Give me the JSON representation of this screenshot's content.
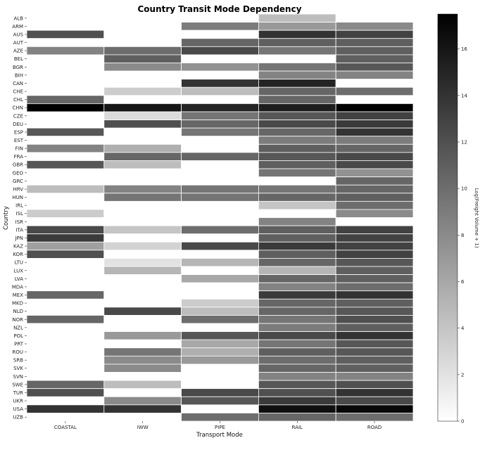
{
  "chart_data": {
    "type": "heatmap",
    "title": "Country Transit Mode Dependency",
    "xlabel": "Transport Mode",
    "ylabel": "Country",
    "colorbar_label": "Log(Freight Volume + 1)",
    "colorbar_range": [
      0,
      17.5
    ],
    "colorbar_ticks": [
      "0",
      "2",
      "4",
      "6",
      "8",
      "10",
      "12",
      "14",
      "16"
    ],
    "colormap": "Greys",
    "grid": false,
    "legend": "colorbar-right",
    "columns": [
      "COASTAL",
      "IWW",
      "PIPE",
      "RAIL",
      "ROAD"
    ],
    "rows": [
      "ALB",
      "ARM",
      "AUS",
      "AUT",
      "AZE",
      "BEL",
      "BGR",
      "BIH",
      "CAN",
      "CHE",
      "CHL",
      "CHN",
      "CZE",
      "DEU",
      "ESP",
      "EST",
      "FIN",
      "FRA",
      "GBR",
      "GEO",
      "GRC",
      "HRV",
      "HUN",
      "IRL",
      "ISL",
      "ISR",
      "ITA",
      "JPN",
      "KAZ",
      "KOR",
      "LTU",
      "LUX",
      "LVA",
      "MDA",
      "MEX",
      "MKD",
      "NLD",
      "NOR",
      "NZL",
      "POL",
      "PRT",
      "ROU",
      "SRB",
      "SVK",
      "SVN",
      "SWE",
      "TUR",
      "UKR",
      "USA",
      "UZB"
    ],
    "values": [
      [
        0,
        0,
        0,
        4.5,
        0
      ],
      [
        0,
        0,
        9,
        7,
        8
      ],
      [
        12,
        0,
        0,
        14,
        13
      ],
      [
        0,
        0,
        10.5,
        11,
        11
      ],
      [
        8.5,
        10,
        12.5,
        9.5,
        11
      ],
      [
        0,
        11,
        0,
        0,
        11
      ],
      [
        0,
        8,
        7.5,
        9.5,
        11.5
      ],
      [
        0,
        0,
        0,
        8.5,
        8.5
      ],
      [
        0,
        0,
        14,
        15,
        0
      ],
      [
        0,
        3.5,
        4.5,
        10.5,
        10
      ],
      [
        10.5,
        0,
        0,
        10.5,
        0
      ],
      [
        18,
        16,
        15,
        15.5,
        18
      ],
      [
        0,
        2.5,
        9.5,
        11.5,
        13
      ],
      [
        0,
        12,
        10.5,
        12.5,
        13.5
      ],
      [
        11.5,
        0,
        9.5,
        10.5,
        14
      ],
      [
        0,
        0,
        0,
        9,
        9
      ],
      [
        8.5,
        5.5,
        0,
        11,
        10.5
      ],
      [
        0,
        10.5,
        10.5,
        11.5,
        12.5
      ],
      [
        11.5,
        4.5,
        0,
        11,
        12.5
      ],
      [
        0,
        0,
        0,
        9.5,
        7.5
      ],
      [
        0,
        0,
        0,
        0,
        10.5
      ],
      [
        4.5,
        8.5,
        9.5,
        9.5,
        10.5
      ],
      [
        0,
        9.5,
        9.5,
        10.5,
        11
      ],
      [
        0,
        0,
        0,
        4,
        10
      ],
      [
        3.5,
        0,
        0,
        0,
        8
      ],
      [
        0,
        0,
        0,
        8.5,
        0
      ],
      [
        12.5,
        4,
        10,
        11,
        13
      ],
      [
        13.5,
        0,
        0,
        11,
        13
      ],
      [
        6.5,
        3,
        12.5,
        13.5,
        13
      ],
      [
        12,
        0,
        0,
        11,
        13
      ],
      [
        0,
        2,
        5,
        10.5,
        11.5
      ],
      [
        0,
        5,
        0,
        5,
        11
      ],
      [
        0,
        0,
        6,
        10.5,
        11
      ],
      [
        0,
        0,
        0,
        8.5,
        10
      ],
      [
        10.5,
        0,
        0,
        13.5,
        14
      ],
      [
        0,
        0,
        3.5,
        10.5,
        11
      ],
      [
        0,
        12.5,
        4.5,
        10.5,
        11.5
      ],
      [
        10.5,
        0,
        10,
        9.5,
        12
      ],
      [
        0,
        0,
        0,
        9,
        11
      ],
      [
        0,
        7,
        11.5,
        12.5,
        14
      ],
      [
        0,
        0,
        6,
        9.5,
        11.5
      ],
      [
        0,
        9.5,
        5.5,
        11,
        11.5
      ],
      [
        0,
        8,
        7,
        10,
        11
      ],
      [
        0,
        8,
        0,
        10.5,
        11
      ],
      [
        0,
        0,
        0,
        8.5,
        8.5
      ],
      [
        10.5,
        4.5,
        0,
        11.5,
        12
      ],
      [
        12,
        0,
        12.5,
        12,
        14
      ],
      [
        0,
        8,
        11.5,
        13.5,
        12.5
      ],
      [
        14,
        14,
        0,
        16.5,
        17
      ],
      [
        0,
        0,
        10,
        10.5,
        10
      ]
    ]
  }
}
